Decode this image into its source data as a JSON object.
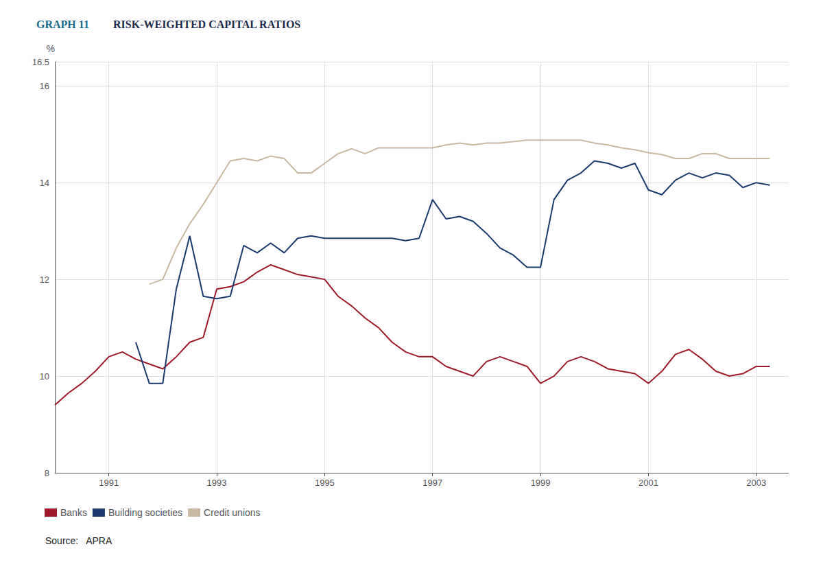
{
  "chart_data": {
    "type": "line",
    "title": "RISK-WEIGHTED CAPITAL RATIOS",
    "subtitle": "GRAPH 11",
    "ylabel": "%",
    "annotations": [
      "Source:   APRA"
    ],
    "xlim": [
      1990.0,
      2003.6
    ],
    "xticks": [
      1991,
      1993,
      1995,
      1997,
      1999,
      2001,
      2003
    ],
    "ylim": [
      8,
      16.5
    ],
    "yticks": [
      8,
      10,
      12,
      14,
      16
    ],
    "grid": true,
    "legend": "bottom",
    "series": [
      {
        "name": "Banks",
        "color": "#9e1a2a",
        "x": [
          1990.0,
          1990.25,
          1990.5,
          1990.75,
          1991.0,
          1991.25,
          1991.5,
          1991.75,
          1992.0,
          1992.25,
          1992.5,
          1992.75,
          1993.0,
          1993.25,
          1993.5,
          1993.75,
          1994.0,
          1994.25,
          1994.5,
          1994.75,
          1995.0,
          1995.25,
          1995.5,
          1995.75,
          1996.0,
          1996.25,
          1996.5,
          1996.75,
          1997.0,
          1997.25,
          1997.5,
          1997.75,
          1998.0,
          1998.25,
          1998.5,
          1998.75,
          1999.0,
          1999.25,
          1999.5,
          1999.75,
          2000.0,
          2000.25,
          2000.5,
          2000.75,
          2001.0,
          2001.25,
          2001.5,
          2001.75,
          2002.0,
          2002.25,
          2002.5,
          2002.75,
          2003.0,
          2003.25
        ],
        "values": [
          9.4,
          9.65,
          9.85,
          10.1,
          10.4,
          10.5,
          10.35,
          10.25,
          10.15,
          10.4,
          10.7,
          10.8,
          11.8,
          11.85,
          11.95,
          12.15,
          12.3,
          12.2,
          12.1,
          12.05,
          12.0,
          11.65,
          11.45,
          11.2,
          11.0,
          10.7,
          10.5,
          10.4,
          10.4,
          10.2,
          10.1,
          10.0,
          10.3,
          10.4,
          10.3,
          10.2,
          9.85,
          10.0,
          10.3,
          10.4,
          10.3,
          10.15,
          10.1,
          10.05,
          9.85,
          10.1,
          10.45,
          10.55,
          10.35,
          10.1,
          10.0,
          10.05,
          10.2,
          10.2
        ]
      },
      {
        "name": "Building societies",
        "color": "#1a3a6b",
        "x": [
          1991.5,
          1991.75,
          1992.0,
          1992.25,
          1992.5,
          1992.75,
          1993.0,
          1993.25,
          1993.5,
          1993.75,
          1994.0,
          1994.25,
          1994.5,
          1994.75,
          1995.0,
          1995.25,
          1995.5,
          1995.75,
          1996.0,
          1996.25,
          1996.5,
          1996.75,
          1997.0,
          1997.25,
          1997.5,
          1997.75,
          1998.0,
          1998.25,
          1998.5,
          1998.75,
          1999.0,
          1999.25,
          1999.5,
          1999.75,
          2000.0,
          2000.25,
          2000.5,
          2000.75,
          2001.0,
          2001.25,
          2001.5,
          2001.75,
          2002.0,
          2002.25,
          2002.5,
          2002.75,
          2003.0,
          2003.25
        ],
        "values": [
          10.7,
          9.85,
          9.85,
          11.8,
          12.9,
          11.65,
          11.6,
          11.65,
          12.7,
          12.55,
          12.75,
          12.55,
          12.85,
          12.9,
          12.85,
          12.85,
          12.85,
          12.85,
          12.85,
          12.85,
          12.8,
          12.85,
          13.65,
          13.25,
          13.3,
          13.2,
          12.95,
          12.65,
          12.5,
          12.25,
          12.25,
          13.65,
          14.05,
          14.2,
          14.45,
          14.4,
          14.3,
          14.4,
          13.85,
          13.75,
          14.05,
          14.2,
          14.1,
          14.2,
          14.15,
          13.9,
          14.0,
          13.95
        ]
      },
      {
        "name": "Credit unions",
        "color": "#c8b8a2",
        "x": [
          1991.75,
          1992.0,
          1992.25,
          1992.5,
          1992.75,
          1993.0,
          1993.25,
          1993.5,
          1993.75,
          1994.0,
          1994.25,
          1994.5,
          1994.75,
          1995.0,
          1995.25,
          1995.5,
          1995.75,
          1996.0,
          1996.25,
          1996.5,
          1996.75,
          1997.0,
          1997.25,
          1997.5,
          1997.75,
          1998.0,
          1998.25,
          1998.5,
          1998.75,
          1999.0,
          1999.25,
          1999.5,
          1999.75,
          2000.0,
          2000.25,
          2000.5,
          2000.75,
          2001.0,
          2001.25,
          2001.5,
          2001.75,
          2002.0,
          2002.25,
          2002.5,
          2002.75,
          2003.0,
          2003.25
        ],
        "values": [
          11.9,
          12.0,
          12.65,
          13.15,
          13.55,
          14.0,
          14.45,
          14.5,
          14.45,
          14.55,
          14.5,
          14.2,
          14.2,
          14.4,
          14.6,
          14.7,
          14.6,
          14.72,
          14.72,
          14.72,
          14.72,
          14.72,
          14.78,
          14.82,
          14.78,
          14.82,
          14.82,
          14.85,
          14.88,
          14.88,
          14.88,
          14.88,
          14.88,
          14.82,
          14.78,
          14.72,
          14.68,
          14.62,
          14.58,
          14.5,
          14.5,
          14.6,
          14.6,
          14.5,
          14.5,
          14.5,
          14.5
        ]
      }
    ]
  }
}
